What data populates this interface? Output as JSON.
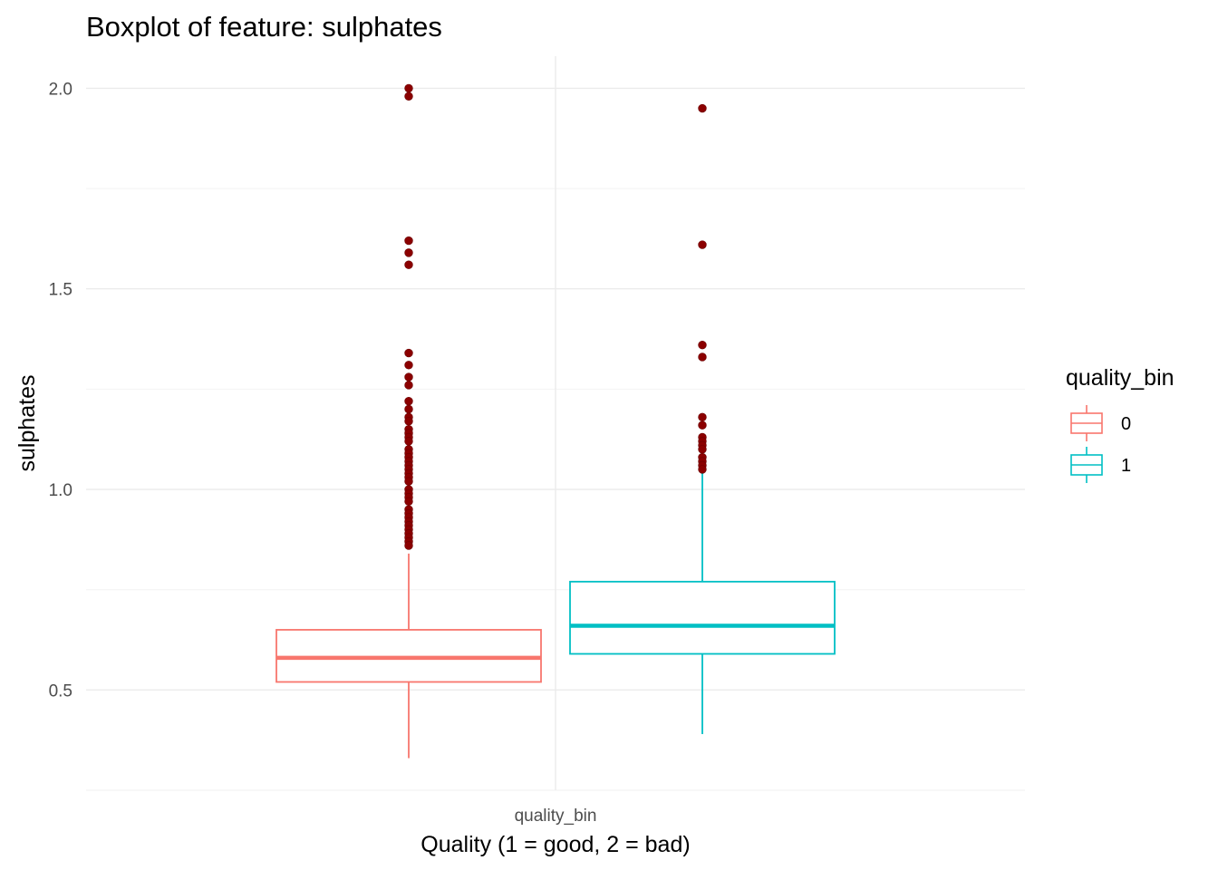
{
  "chart_data": {
    "type": "boxplot",
    "title": "Boxplot of feature: sulphates",
    "xlabel": "Quality (1 = good, 2 = bad)",
    "ylabel": "sulphates",
    "x_tick_label": "quality_bin",
    "ylim": [
      0.25,
      2.08
    ],
    "y_ticks": [
      {
        "value": 0.5,
        "label": "0.5"
      },
      {
        "value": 1.0,
        "label": "1.0"
      },
      {
        "value": 1.5,
        "label": "1.5"
      },
      {
        "value": 2.0,
        "label": "2.0"
      }
    ],
    "grid": true,
    "legend": {
      "title": "quality_bin",
      "position": "right",
      "entries": [
        {
          "label": "0",
          "color": "#F8766D"
        },
        {
          "label": "1",
          "color": "#00BFC4"
        }
      ]
    },
    "outlier_color": "#8B0000",
    "series": [
      {
        "name": "0",
        "color": "#F8766D",
        "whisker_low": 0.33,
        "q1": 0.52,
        "median": 0.58,
        "q3": 0.65,
        "whisker_high": 0.84,
        "outliers": [
          2.0,
          1.98,
          1.62,
          1.59,
          1.56,
          1.34,
          1.31,
          1.28,
          1.26,
          1.22,
          1.2,
          1.18,
          1.17,
          1.15,
          1.14,
          1.13,
          1.12,
          1.1,
          1.09,
          1.08,
          1.07,
          1.06,
          1.05,
          1.04,
          1.03,
          1.02,
          1.0,
          0.99,
          0.98,
          0.97,
          0.95,
          0.94,
          0.93,
          0.92,
          0.91,
          0.9,
          0.89,
          0.88,
          0.87,
          0.86
        ]
      },
      {
        "name": "1",
        "color": "#00BFC4",
        "whisker_low": 0.39,
        "q1": 0.59,
        "median": 0.66,
        "q3": 0.77,
        "whisker_high": 1.04,
        "outliers": [
          1.95,
          1.61,
          1.36,
          1.33,
          1.18,
          1.16,
          1.13,
          1.12,
          1.11,
          1.1,
          1.08,
          1.07,
          1.06,
          1.05
        ]
      }
    ]
  }
}
